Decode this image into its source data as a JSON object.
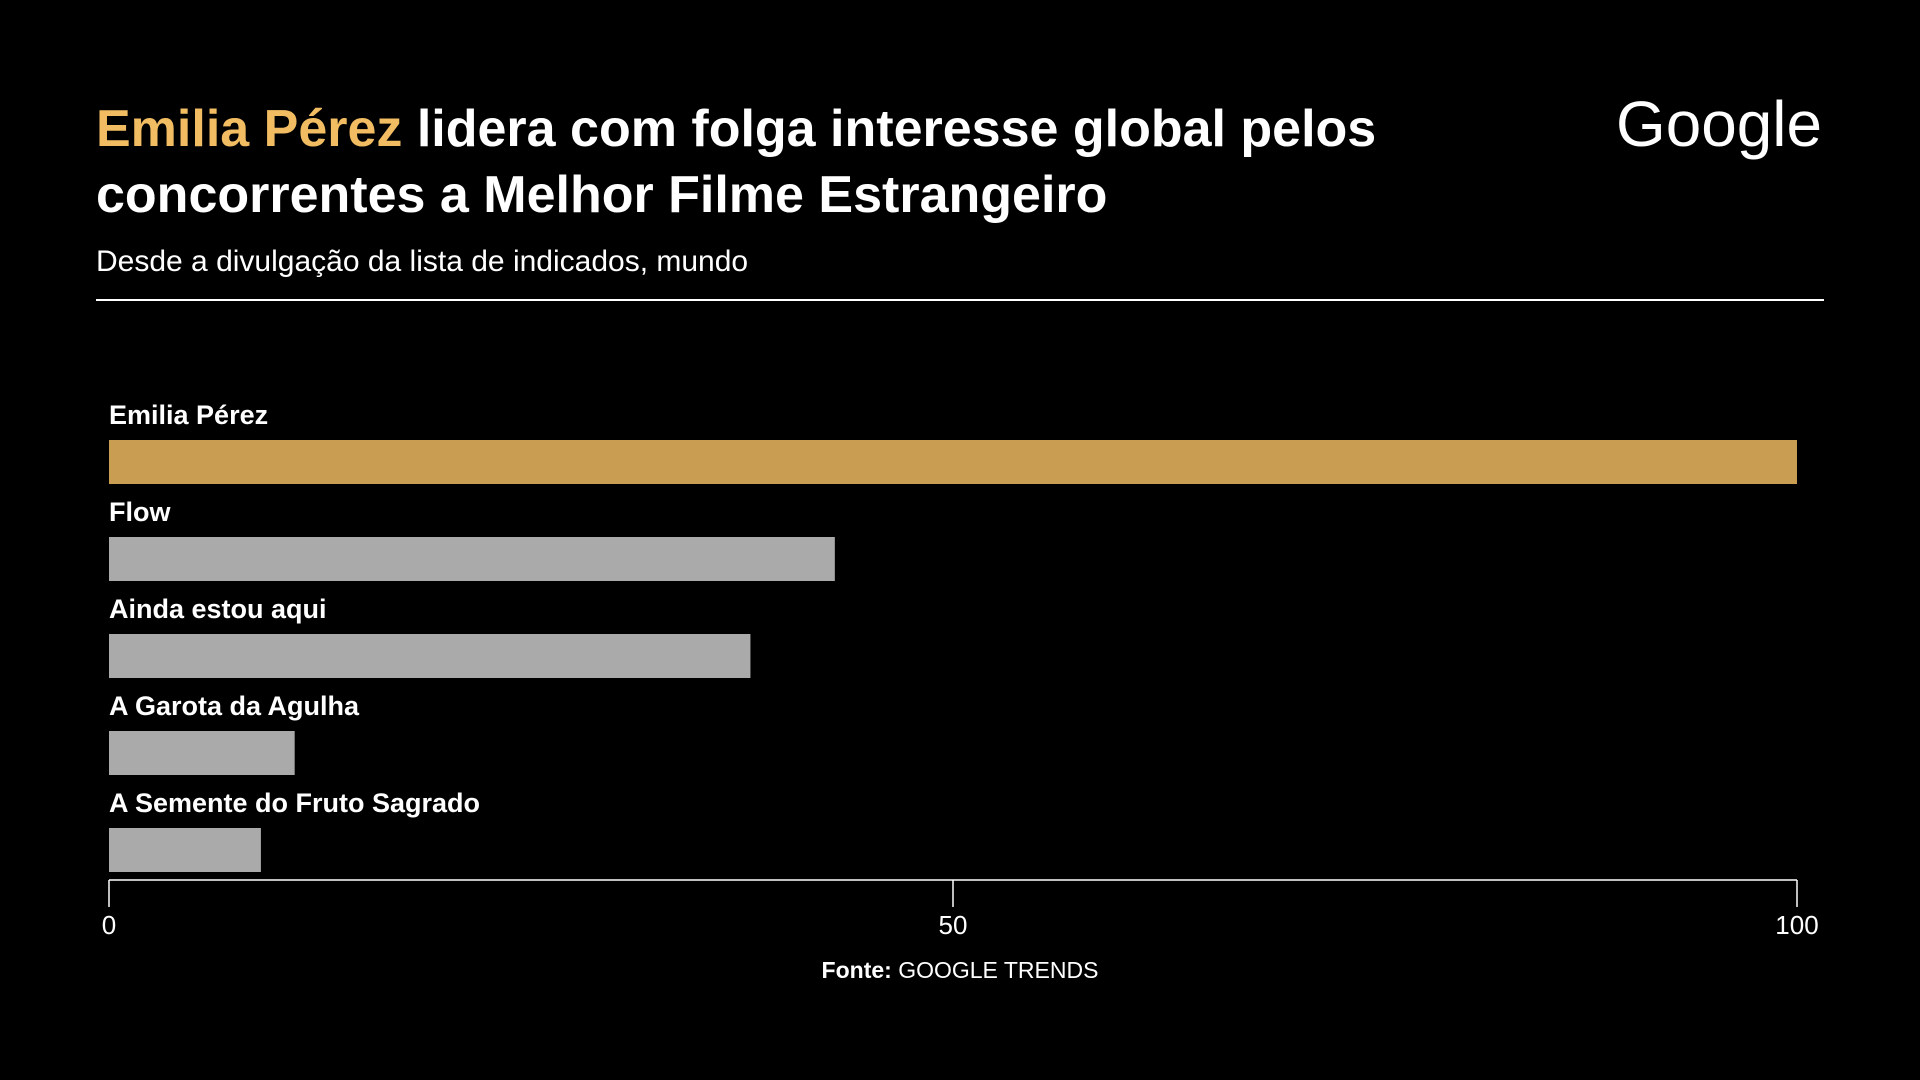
{
  "header": {
    "title_highlight": "Emilia Pérez",
    "title_rest": " lidera com folga interesse global pelos concorrentes a Melhor Filme Estrangeiro",
    "subtitle": "Desde a divulgação da lista de indicados, mundo"
  },
  "logo": {
    "text": "Google"
  },
  "chart_data": {
    "type": "bar",
    "orientation": "horizontal",
    "categories": [
      "Emilia Pérez",
      "Flow",
      "Ainda estou aqui",
      "A Garota da Agulha",
      "A Semente do Fruto Sagrado"
    ],
    "values": [
      100,
      43,
      38,
      11,
      9
    ],
    "xlim": [
      0,
      100
    ],
    "xticks": [
      "0",
      "50",
      "100"
    ],
    "grid": false,
    "legend": "none",
    "colors": {
      "highlight": "#c99d52",
      "default": "#aaaaaa",
      "axis": "#ffffff",
      "title_highlight": "#f2bd62"
    }
  },
  "source": {
    "label": "Fonte:",
    "value": " GOOGLE TRENDS"
  }
}
